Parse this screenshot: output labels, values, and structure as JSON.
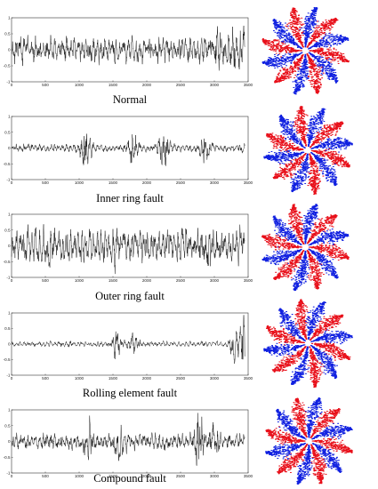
{
  "chart_data": [
    {
      "type": "line",
      "label": "Normal",
      "xlim": [
        0,
        3500
      ],
      "ylim": [
        -1,
        1
      ],
      "xticks": [
        "0",
        "500",
        "1000",
        "1500",
        "2000",
        "2500",
        "3000",
        "3500"
      ],
      "yticks": [
        "-1",
        "-0.5",
        "0",
        "0.5",
        "1"
      ],
      "pattern": {
        "base": 0.32,
        "bursts": [
          [
            3050,
            0.35
          ],
          [
            3280,
            0.35
          ],
          [
            3420,
            0.25
          ]
        ],
        "seed": 11
      },
      "symmetrized_dot_pattern": {
        "arms": 12,
        "colors": [
          "#e8101a",
          "#1020e0"
        ]
      }
    },
    {
      "type": "line",
      "label": "Inner ring fault",
      "xlim": [
        0,
        3500
      ],
      "ylim": [
        -1,
        1
      ],
      "xticks": [
        "0",
        "500",
        "1000",
        "1500",
        "2000",
        "2500",
        "3000",
        "3500"
      ],
      "yticks": [
        "-1",
        "-0.5",
        "0",
        "0.5",
        "1"
      ],
      "pattern": {
        "base": 0.1,
        "bursts": [
          [
            1100,
            0.55
          ],
          [
            1800,
            0.5
          ],
          [
            2250,
            0.6
          ],
          [
            2850,
            0.3
          ]
        ],
        "seed": 23
      },
      "symmetrized_dot_pattern": {
        "arms": 12,
        "colors": [
          "#e8101a",
          "#1020e0"
        ]
      }
    },
    {
      "type": "line",
      "label": "Outer ring fault",
      "xlim": [
        0,
        3500
      ],
      "ylim": [
        -1,
        1
      ],
      "xticks": [
        "0",
        "500",
        "1000",
        "1500",
        "2000",
        "2500",
        "3000",
        "3500"
      ],
      "yticks": [
        "-1",
        "-0.5",
        "0",
        "0.5",
        "1"
      ],
      "pattern": {
        "base": 0.42,
        "bursts": [
          [
            500,
            0.2
          ],
          [
            1500,
            0.2
          ],
          [
            2900,
            0.2
          ]
        ],
        "seed": 37
      },
      "symmetrized_dot_pattern": {
        "arms": 12,
        "colors": [
          "#e8101a",
          "#1020e0"
        ]
      }
    },
    {
      "type": "line",
      "label": "Rolling element fault",
      "xlim": [
        0,
        3500
      ],
      "ylim": [
        -1,
        1
      ],
      "xticks": [
        "0",
        "500",
        "1000",
        "1500",
        "2000",
        "2500",
        "3000",
        "3500"
      ],
      "yticks": [
        "-1",
        "-0.5",
        "0",
        "0.5",
        "1"
      ],
      "pattern": {
        "base": 0.07,
        "bursts": [
          [
            1550,
            0.3
          ],
          [
            1800,
            0.25
          ],
          [
            3300,
            0.35
          ],
          [
            3460,
            0.95
          ]
        ],
        "seed": 41
      },
      "symmetrized_dot_pattern": {
        "arms": 12,
        "colors": [
          "#e8101a",
          "#1020e0"
        ]
      }
    },
    {
      "type": "line",
      "label": "Compound fault",
      "xlim": [
        0,
        3500
      ],
      "ylim": [
        -1,
        1
      ],
      "xticks": [
        "0",
        "500",
        "1000",
        "1500",
        "2000",
        "2500",
        "3000",
        "3500"
      ],
      "yticks": [
        "-1",
        "-0.5",
        "0",
        "0.5",
        "1"
      ],
      "pattern": {
        "base": 0.2,
        "bursts": [
          [
            1150,
            0.4
          ],
          [
            1600,
            0.35
          ],
          [
            2780,
            0.75
          ],
          [
            3000,
            0.35
          ]
        ],
        "seed": 53
      },
      "symmetrized_dot_pattern": {
        "arms": 12,
        "colors": [
          "#e8101a",
          "#1020e0"
        ]
      }
    }
  ]
}
